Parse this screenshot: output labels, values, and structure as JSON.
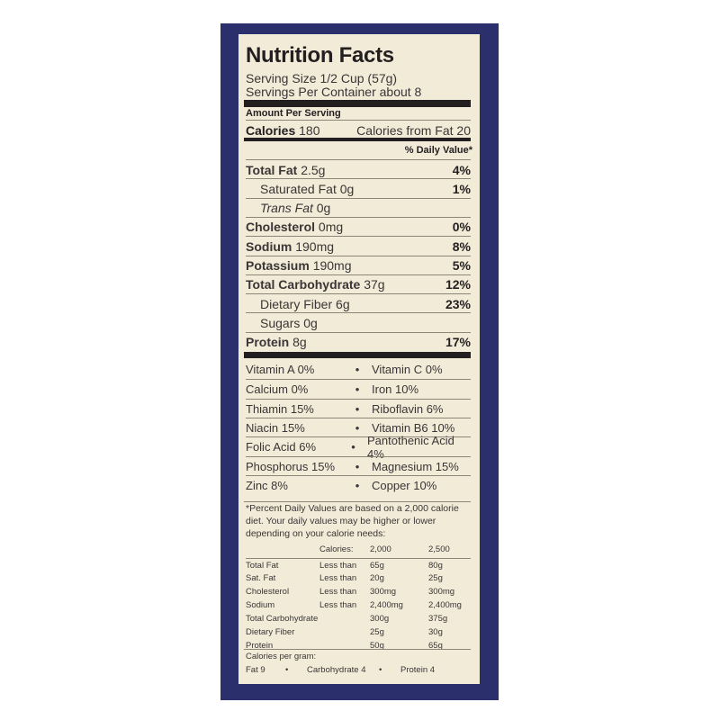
{
  "label": {
    "title": "Nutrition Facts",
    "serving_size": "Serving Size 1/2 Cup (57g)",
    "servings_per_container": "Servings Per Container about 8",
    "amount_per_serving": "Amount Per Serving",
    "calories_label": "Calories",
    "calories_value": "180",
    "calories_from_fat": "Calories from Fat 20",
    "daily_value_header": "% Daily Value*",
    "nutrients": [
      {
        "name": "Total Fat",
        "amount": "2.5g",
        "dv": "4%",
        "bold": true
      },
      {
        "name": "Saturated Fat",
        "amount": "0g",
        "dv": "1%",
        "bold": false
      },
      {
        "name": "Trans Fat",
        "amount": "0g",
        "dv": "",
        "bold": false
      },
      {
        "name": "Cholesterol",
        "amount": "0mg",
        "dv": "0%",
        "bold": true
      },
      {
        "name": "Sodium",
        "amount": "190mg",
        "dv": "8%",
        "bold": true
      },
      {
        "name": "Potassium",
        "amount": "190mg",
        "dv": "5%",
        "bold": true
      },
      {
        "name": "Total Carbohydrate",
        "amount": "37g",
        "dv": "12%",
        "bold": true
      },
      {
        "name": "Dietary Fiber",
        "amount": "6g",
        "dv": "23%",
        "bold": false
      },
      {
        "name": "Sugars",
        "amount": "0g",
        "dv": "",
        "bold": false
      },
      {
        "name": "Protein",
        "amount": "8g",
        "dv": "17%",
        "bold": true
      }
    ],
    "vitamins": [
      [
        "Vitamin A 0%",
        "Vitamin C 0%"
      ],
      [
        "Calcium 0%",
        "Iron 10%"
      ],
      [
        "Thiamin 15%",
        "Riboflavin 6%"
      ],
      [
        "Niacin 15%",
        "Vitamin B6 10%"
      ],
      [
        "Folic Acid 6%",
        "Pantothenic Acid 4%"
      ],
      [
        "Phosphorus 15%",
        "Magnesium 15%"
      ],
      [
        "Zinc 8%",
        "Copper 10%"
      ]
    ],
    "bullet": "•",
    "footnote": "*Percent Daily Values are based on a 2,000 calorie diet. Your daily values may be higher or lower depending on your calorie needs:",
    "dv_table": {
      "header": [
        "",
        "Calories:",
        "2,000",
        "2,500"
      ],
      "rows": [
        [
          "Total Fat",
          "Less than",
          "65g",
          "80g"
        ],
        [
          " Sat. Fat",
          "Less than",
          "20g",
          "25g"
        ],
        [
          "Cholesterol",
          "Less than",
          "300mg",
          "300mg"
        ],
        [
          "Sodium",
          "Less than",
          "2,400mg",
          "2,400mg"
        ],
        [
          "Total Carbohydrate",
          "",
          "300g",
          "375g"
        ],
        [
          " Dietary Fiber",
          "",
          "25g",
          "30g"
        ],
        [
          "Protein",
          "",
          "50g",
          "65g"
        ]
      ]
    },
    "calories_per_gram": "Calories per gram:",
    "cpg": [
      "Fat 9",
      "Carbohydrate 4",
      "Protein 4"
    ]
  },
  "colors": {
    "box": "#2b2f6c",
    "panel": "#f2ebd8",
    "text": "#231f20"
  }
}
